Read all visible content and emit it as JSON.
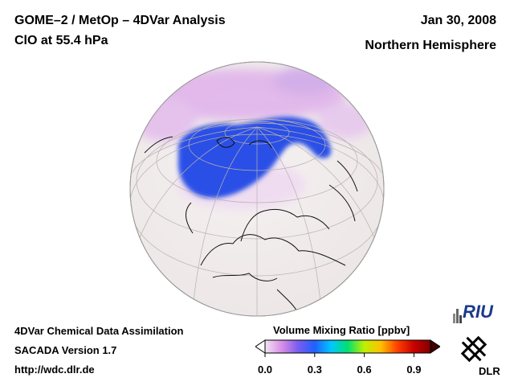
{
  "header": {
    "title_line1": "GOME–2 / MetOp – 4DVar Analysis",
    "title_line2": "ClO at 55.4 hPa",
    "date": "Jan 30, 2008",
    "region": "Northern Hemisphere"
  },
  "footer": {
    "line1": "4DVar Chemical Data Assimilation",
    "line2": "SACADA Version 1.7",
    "line3": "http://wdc.dlr.de"
  },
  "colorbar": {
    "title": "Volume Mixing Ratio [ppbv]",
    "ticks": [
      "0.0",
      "0.3",
      "0.6",
      "0.9"
    ],
    "tick_values": [
      0.0,
      0.3,
      0.6,
      0.9
    ],
    "range": [
      0.0,
      1.0
    ],
    "colors": [
      "#f2e6f2",
      "#d98ee6",
      "#7a5cf0",
      "#2060ff",
      "#00c8ff",
      "#00e070",
      "#c0f000",
      "#ffc000",
      "#ff4000",
      "#c80000",
      "#800000"
    ]
  },
  "logos": {
    "riu": "RIU",
    "dlr": "DLR"
  },
  "map": {
    "land_color": "#f3efef",
    "ocean_color": "#f3efef",
    "high_clo_color": "#2a4fe6",
    "low_clo_color": "#d9a6e6"
  }
}
